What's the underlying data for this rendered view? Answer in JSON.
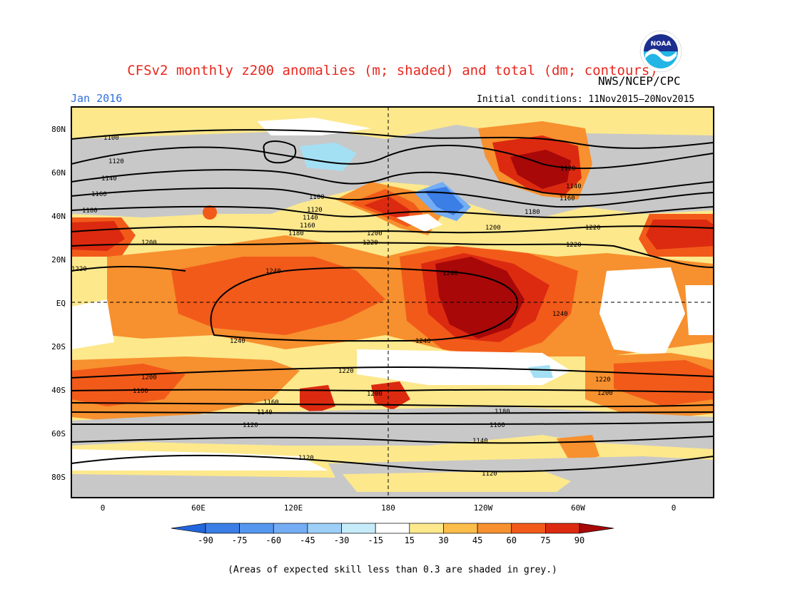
{
  "title": "CFSv2 monthly z200 anomalies (m; shaded) and total (dm; contours)",
  "date_label": "Jan 2016",
  "agency": "NWS/NCEP/CPC",
  "logo_text": "NOAA",
  "initial_conditions": "Initial conditions: 11Nov2015—20Nov2015",
  "note": "(Areas of expected skill less than 0.3 are shaded in grey.)",
  "map": {
    "lat_labels": [
      "80N",
      "60N",
      "40N",
      "20N",
      "EQ",
      "20S",
      "40S",
      "60S",
      "80S"
    ],
    "lon_labels": [
      "0",
      "60E",
      "120E",
      "180",
      "120W",
      "60W",
      "0"
    ],
    "contour_labels": [
      "1100",
      "1120",
      "1140",
      "1160",
      "1180",
      "1200",
      "1220",
      "1240",
      "1240",
      "1240",
      "1240",
      "1220",
      "1200",
      "1180",
      "1160",
      "1140",
      "1120",
      "1100",
      "1120",
      "1140",
      "1160",
      "1180",
      "1200",
      "1220",
      "1220",
      "1200",
      "1180",
      "1160",
      "1140",
      "1120",
      "1120",
      "1140",
      "1160",
      "1180",
      "1200",
      "1220",
      "1220",
      "1200",
      "1140",
      "1160",
      "1180",
      "1120",
      "1100",
      "1120",
      "1140",
      "1160",
      "1180",
      "1200",
      "1220"
    ],
    "colors": {
      "grey": "#c8c8c8",
      "light_yellow": "#fde88c",
      "yellow_orange": "#fbbe4a",
      "orange": "#f7902e",
      "dark_orange": "#f25a1a",
      "red": "#dc2a10",
      "dark_red": "#a80808",
      "light_blue": "#a4e0f4",
      "blue": "#4a9cf2"
    }
  },
  "colorbar": {
    "ticks": [
      "-90",
      "-75",
      "-60",
      "-45",
      "-30",
      "-15",
      "15",
      "30",
      "45",
      "60",
      "75",
      "90"
    ],
    "colors": [
      "#2166dc",
      "#3a7ee6",
      "#5596ef",
      "#74adf4",
      "#9dcff7",
      "#c7ecf9",
      "#ffffff",
      "#fde88c",
      "#fbbe4a",
      "#f7902e",
      "#f25a1a",
      "#dc2a10",
      "#a80808"
    ]
  }
}
